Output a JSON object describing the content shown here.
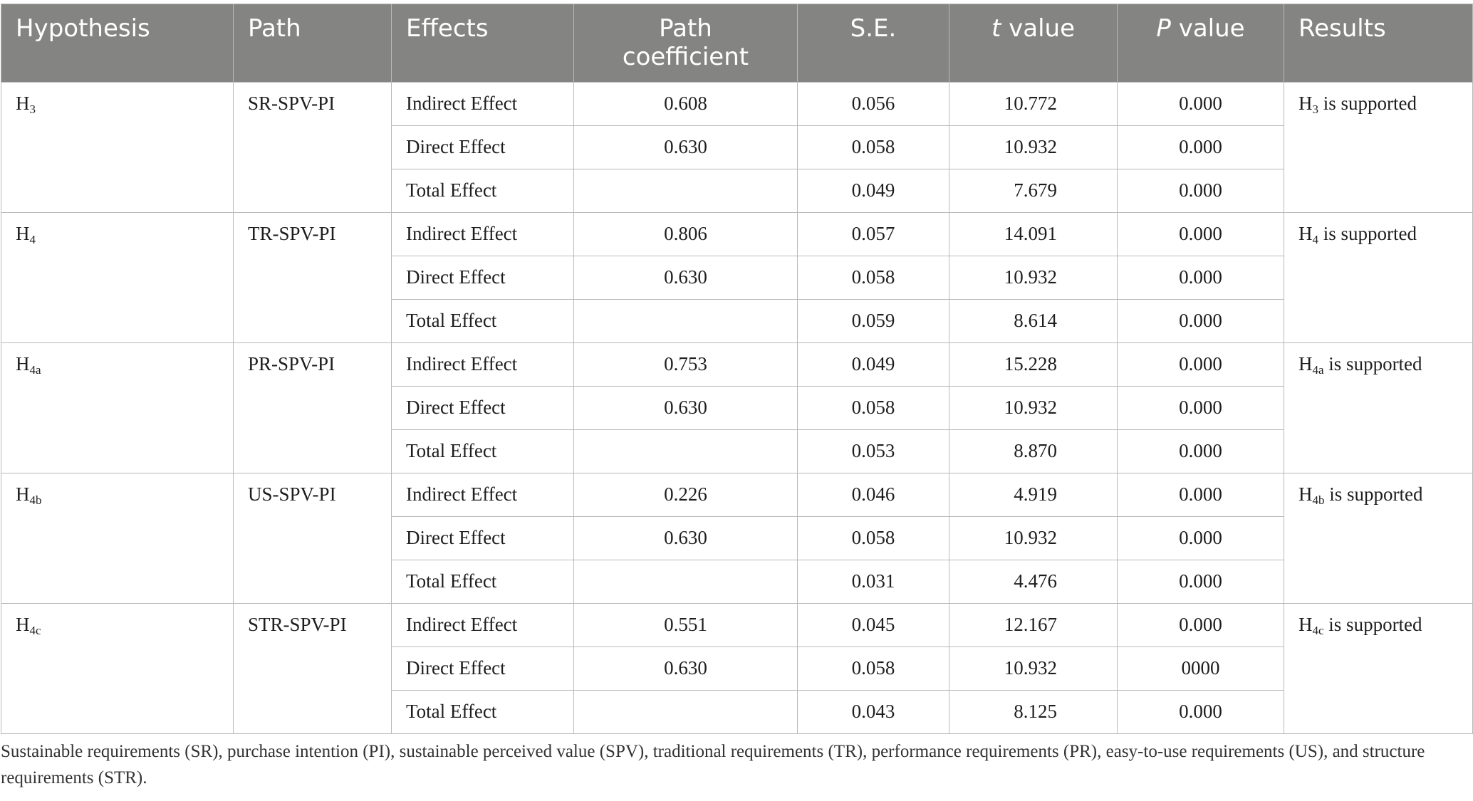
{
  "headers": {
    "hypothesis": "Hypothesis",
    "path": "Path",
    "effects": "Effects",
    "path_coefficient_1": "Path",
    "path_coefficient_2": "coefficient",
    "se": "S.E.",
    "t_value_italic": "t",
    "t_value_rest": " value",
    "p_value_italic": "P",
    "p_value_rest": " value",
    "results": "Results"
  },
  "groups": [
    {
      "hyp_base": "H",
      "hyp_sub": "3",
      "path": "SR-SPV-PI",
      "result_base": "H",
      "result_sub": "3",
      "result_text": " is supported",
      "rows": [
        {
          "effect": "Indirect Effect",
          "coef": "0.608",
          "se": "0.056",
          "t": "10.772",
          "p": "0.000"
        },
        {
          "effect": "Direct Effect",
          "coef": "0.630",
          "se": "0.058",
          "t": "10.932",
          "p": "0.000"
        },
        {
          "effect": "Total Effect",
          "coef": "",
          "se": "0.049",
          "t": "7.679",
          "p": "0.000"
        }
      ]
    },
    {
      "hyp_base": "H",
      "hyp_sub": "4",
      "path": "TR-SPV-PI",
      "result_base": "H",
      "result_sub": "4",
      "result_text": " is supported",
      "rows": [
        {
          "effect": "Indirect Effect",
          "coef": "0.806",
          "se": "0.057",
          "t": "14.091",
          "p": "0.000"
        },
        {
          "effect": "Direct Effect",
          "coef": "0.630",
          "se": "0.058",
          "t": "10.932",
          "p": "0.000"
        },
        {
          "effect": "Total Effect",
          "coef": "",
          "se": "0.059",
          "t": "8.614",
          "p": "0.000"
        }
      ]
    },
    {
      "hyp_base": "H",
      "hyp_sub": "4a",
      "path": "PR-SPV-PI",
      "result_base": "H",
      "result_sub": "4a",
      "result_text": " is supported",
      "rows": [
        {
          "effect": "Indirect Effect",
          "coef": "0.753",
          "se": "0.049",
          "t": "15.228",
          "p": "0.000"
        },
        {
          "effect": "Direct Effect",
          "coef": "0.630",
          "se": "0.058",
          "t": "10.932",
          "p": "0.000"
        },
        {
          "effect": "Total Effect",
          "coef": "",
          "se": "0.053",
          "t": "8.870",
          "p": "0.000"
        }
      ]
    },
    {
      "hyp_base": "H",
      "hyp_sub": "4b",
      "path": "US-SPV-PI",
      "result_base": "H",
      "result_sub": "4b",
      "result_text": " is supported",
      "rows": [
        {
          "effect": "Indirect Effect",
          "coef": "0.226",
          "se": "0.046",
          "t": "4.919",
          "p": "0.000"
        },
        {
          "effect": "Direct Effect",
          "coef": "0.630",
          "se": "0.058",
          "t": "10.932",
          "p": "0.000"
        },
        {
          "effect": "Total Effect",
          "coef": "",
          "se": "0.031",
          "t": "4.476",
          "p": "0.000"
        }
      ]
    },
    {
      "hyp_base": "H",
      "hyp_sub": "4c",
      "path": "STR-SPV-PI",
      "result_base": "H",
      "result_sub": "4c",
      "result_text": " is supported",
      "rows": [
        {
          "effect": "Indirect Effect",
          "coef": "0.551",
          "se": "0.045",
          "t": "12.167",
          "p": "0.000"
        },
        {
          "effect": "Direct Effect",
          "coef": "0.630",
          "se": "0.058",
          "t": "10.932",
          "p": "0000"
        },
        {
          "effect": "Total Effect",
          "coef": "",
          "se": "0.043",
          "t": "8.125",
          "p": "0.000"
        }
      ]
    }
  ],
  "footnote": "Sustainable requirements (SR), purchase intention (PI), sustainable perceived value (SPV), traditional requirements (TR), performance requirements (PR), easy-to-use requirements (US), and structure requirements (STR)."
}
